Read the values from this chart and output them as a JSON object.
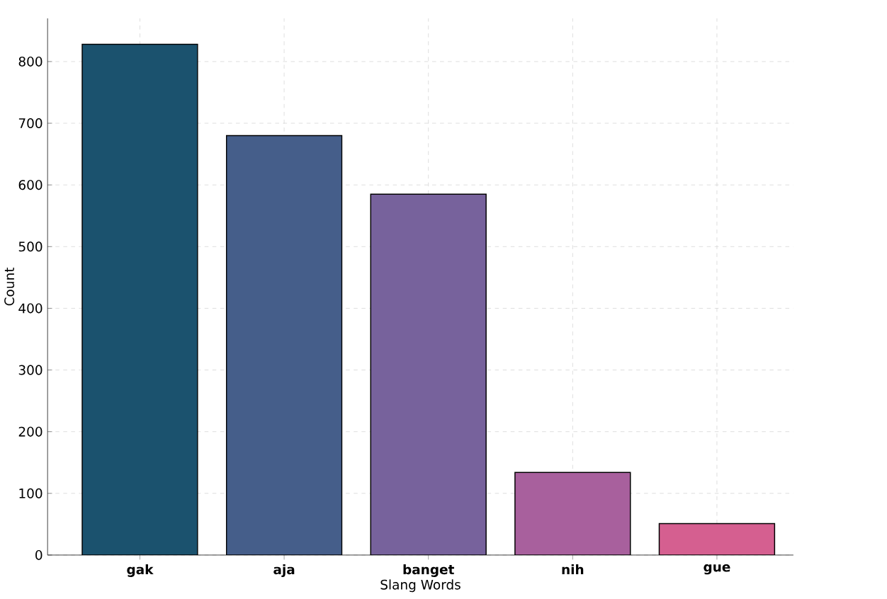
{
  "chart_data": {
    "type": "bar",
    "xlabel": "Slang Words",
    "ylabel": "Count",
    "categories": [
      "gak",
      "aja",
      "banget",
      "nih",
      "gue"
    ],
    "values": [
      828,
      680,
      585,
      134,
      51
    ],
    "colors": [
      "#1b526e",
      "#455e8a",
      "#77629c",
      "#a8609d",
      "#d55f90"
    ],
    "ylim": [
      0,
      870
    ],
    "yticks": [
      0,
      100,
      200,
      300,
      400,
      500,
      600,
      700,
      800
    ],
    "grid": true
  }
}
